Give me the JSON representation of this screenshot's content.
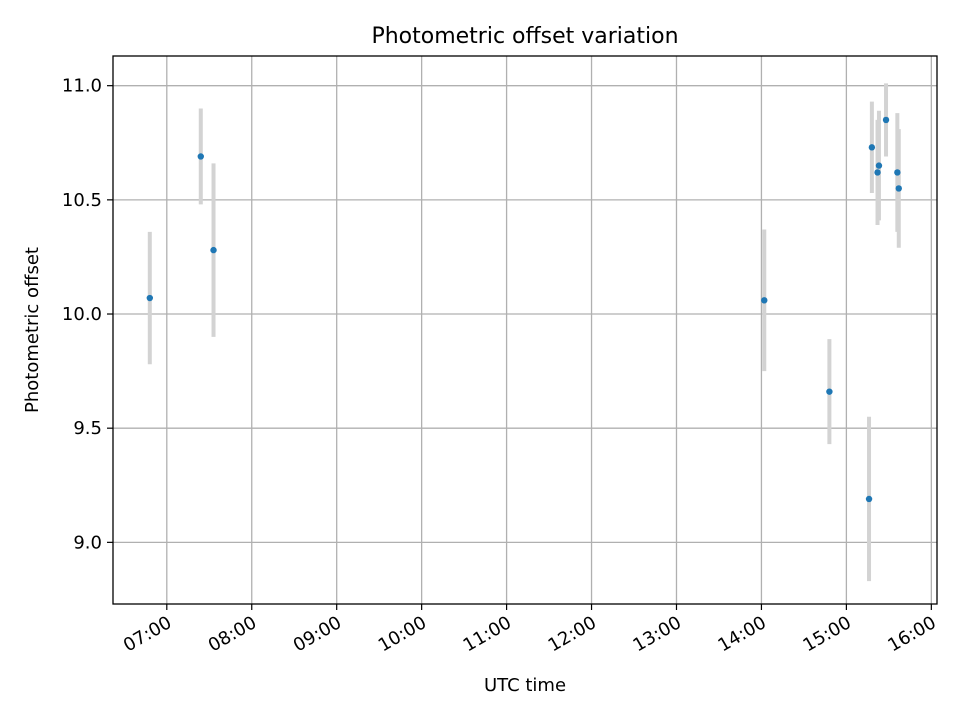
{
  "chart_data": {
    "type": "scatter",
    "title": "Photometric offset variation",
    "xlabel": "UTC time",
    "ylabel": "Photometric offset",
    "x_ticks": [
      "07:00",
      "08:00",
      "09:00",
      "10:00",
      "11:00",
      "12:00",
      "13:00",
      "14:00",
      "15:00",
      "16:00"
    ],
    "y_ticks": [
      "9.0",
      "9.5",
      "10.0",
      "10.5",
      "11.0"
    ],
    "xlim": [
      "06:22",
      "16:04"
    ],
    "ylim": [
      8.73,
      11.13
    ],
    "grid": true,
    "point_color": "#1f77b4",
    "errorbar_color": "#d3d3d3",
    "points": [
      {
        "x": "06:48",
        "y": 10.07,
        "err": 0.29
      },
      {
        "x": "07:24",
        "y": 10.69,
        "err": 0.21
      },
      {
        "x": "07:33",
        "y": 10.28,
        "err": 0.38
      },
      {
        "x": "14:02",
        "y": 10.06,
        "err": 0.31
      },
      {
        "x": "14:48",
        "y": 9.66,
        "err": 0.23
      },
      {
        "x": "15:16",
        "y": 9.19,
        "err": 0.36
      },
      {
        "x": "15:18",
        "y": 10.73,
        "err": 0.2
      },
      {
        "x": "15:22",
        "y": 10.62,
        "err": 0.23
      },
      {
        "x": "15:23",
        "y": 10.65,
        "err": 0.24
      },
      {
        "x": "15:28",
        "y": 10.85,
        "err": 0.16
      },
      {
        "x": "15:36",
        "y": 10.62,
        "err": 0.26
      },
      {
        "x": "15:37",
        "y": 10.55,
        "err": 0.26
      }
    ]
  }
}
